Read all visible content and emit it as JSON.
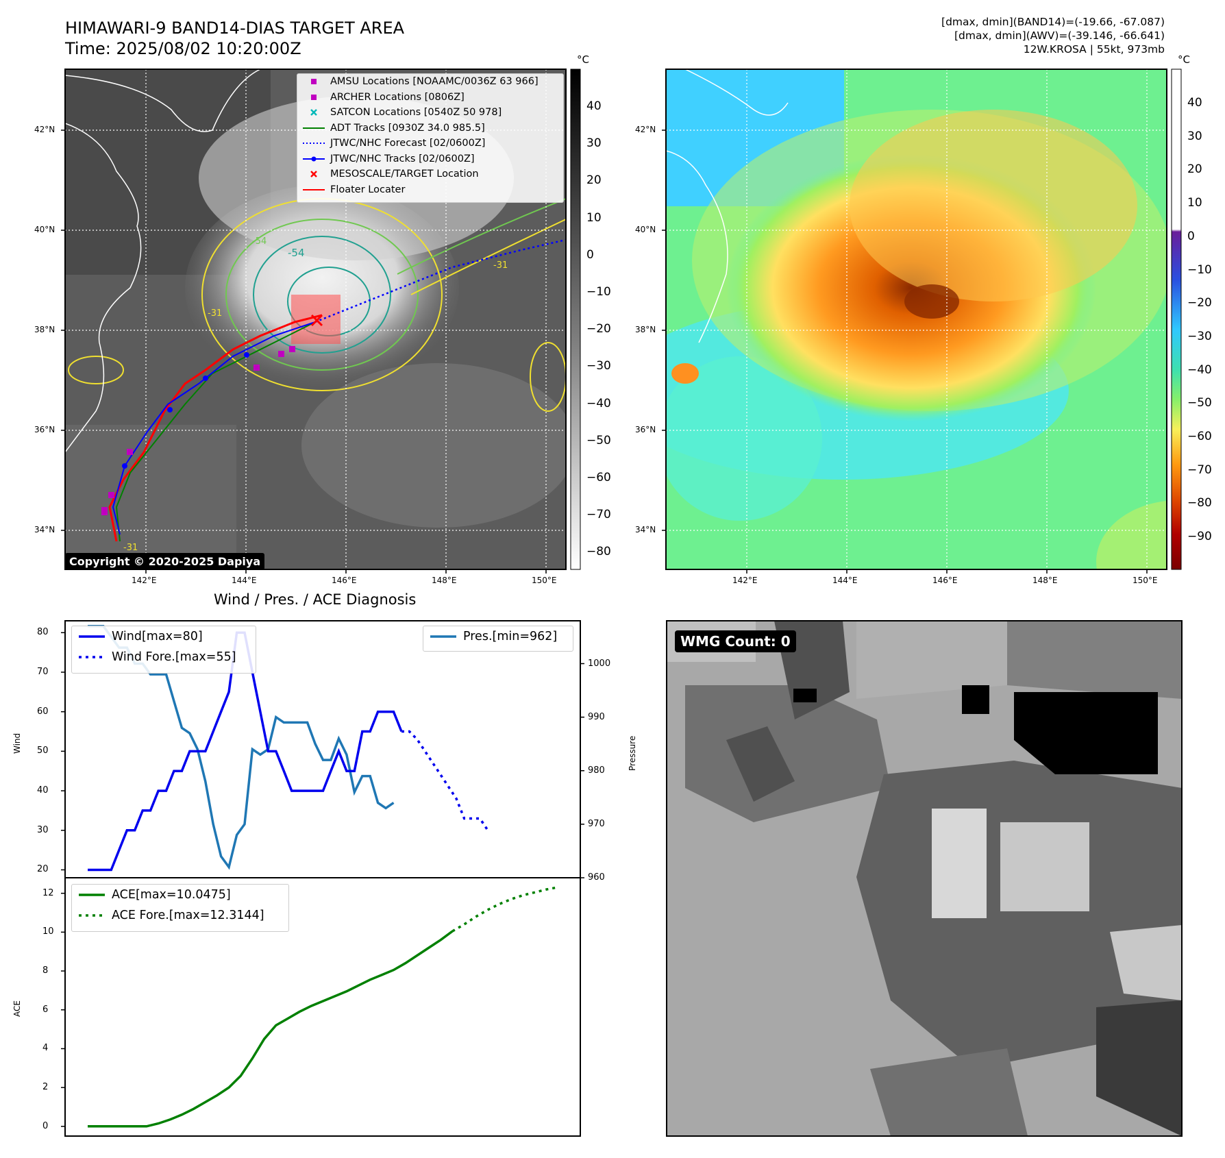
{
  "header": {
    "title_line1": "HIMAWARI-9 BAND14-DIAS TARGET AREA",
    "title_line2": "Time: 2025/08/02 10:20:00Z",
    "right_line1": "[dmax, dmin](BAND14)=(-19.66, -67.087)",
    "right_line2": "[dmax, dmin](AWV)=(-39.146, -66.641)",
    "right_line3": "12W.KROSA | 55kt, 973mb"
  },
  "map_panel": {
    "copyright": "Copyright © 2020-2025 Dapiya",
    "lat_labels": [
      "42°N",
      "40°N",
      "38°N",
      "36°N",
      "34°N"
    ],
    "lon_labels": [
      "142°E",
      "144°E",
      "146°E",
      "148°E",
      "150°E"
    ],
    "colorbar_unit": "°C",
    "colorbar_ticks": [
      "40",
      "30",
      "20",
      "10",
      "0",
      "−10",
      "−20",
      "−30",
      "−40",
      "−50",
      "−60",
      "−70",
      "−80"
    ],
    "legend": [
      {
        "label": "AMSU Locations [NOAAMC/0036Z 63 966]",
        "marker": "square",
        "color": "#c000c0"
      },
      {
        "label": "ARCHER Locations [0806Z]",
        "marker": "square",
        "color": "#c000c0"
      },
      {
        "label": "SATCON Locations [0540Z 50 978]",
        "marker": "x",
        "color": "#00b8b8"
      },
      {
        "label": "ADT Tracks [0930Z 34.0 985.5]",
        "marker": "line",
        "color": "#008000"
      },
      {
        "label": "JTWC/NHC Forecast [02/0600Z]",
        "marker": "dotted",
        "color": "#0000ff"
      },
      {
        "label": "JTWC/NHC Tracks [02/0600Z]",
        "marker": "line-dot",
        "color": "#0000ff"
      },
      {
        "label": "MESOSCALE/TARGET Location",
        "marker": "x",
        "color": "#ff0000"
      },
      {
        "label": "Floater Locater",
        "marker": "line",
        "color": "#ff0000"
      }
    ],
    "contour_labels": [
      "-54",
      "-54",
      "-31",
      "-31",
      "-31"
    ]
  },
  "awv_panel": {
    "colorbar_unit": "°C",
    "colorbar_ticks": [
      "40",
      "30",
      "20",
      "10",
      "0",
      "−10",
      "−20",
      "−30",
      "−40",
      "−50",
      "−60",
      "−70",
      "−80",
      "−90"
    ]
  },
  "wmg_panel": {
    "label": "WMG Count: 0"
  },
  "chart_data": [
    {
      "type": "line",
      "title": "Wind / Pres. / ACE Diagnosis",
      "ylabel": "Wind",
      "y2label": "Pressure",
      "ylim": [
        18,
        83
      ],
      "y2lim": [
        960,
        1008
      ],
      "yticks": [
        "80",
        "70",
        "60",
        "50",
        "40",
        "30",
        "20"
      ],
      "y2ticks": [
        "1000",
        "990",
        "980",
        "970",
        "960"
      ],
      "series": [
        {
          "name": "Wind[max=80]",
          "axis": "left",
          "style": "solid",
          "color": "#0000ee",
          "values": [
            20,
            20,
            20,
            20,
            25,
            30,
            30,
            35,
            35,
            40,
            40,
            45,
            45,
            50,
            50,
            50,
            55,
            60,
            65,
            80,
            80,
            70,
            60,
            50,
            50,
            45,
            40,
            40,
            40,
            40,
            40,
            45,
            50,
            45,
            45,
            55,
            55,
            60,
            60,
            60,
            55
          ]
        },
        {
          "name": "Wind Fore.[max=55]",
          "axis": "left",
          "style": "dotted",
          "color": "#0000ee",
          "values": [
            55,
            55,
            53,
            50,
            47,
            44,
            41,
            38,
            33,
            33,
            33,
            30
          ],
          "start": 40
        },
        {
          "name": "Pres.[min=962]",
          "axis": "right",
          "style": "solid",
          "color": "#1f77b4",
          "values": [
            1007,
            1007,
            1007,
            1005,
            1003,
            1003,
            1000,
            1000,
            998,
            998,
            998,
            993,
            988,
            987,
            984,
            978,
            970,
            964,
            962,
            968,
            970,
            984,
            983,
            984,
            990,
            989,
            989,
            989,
            989,
            985,
            982,
            982,
            986,
            983,
            976,
            979,
            979,
            974,
            973,
            974
          ]
        }
      ]
    },
    {
      "type": "line",
      "ylabel": "ACE",
      "ylim": [
        -0.5,
        12.8
      ],
      "yticks": [
        "12",
        "10",
        "8",
        "6",
        "4",
        "2",
        "0"
      ],
      "series": [
        {
          "name": "ACE[max=10.0475]",
          "style": "solid",
          "color": "#008000",
          "values": [
            0,
            0,
            0,
            0,
            0,
            0,
            0.15,
            0.35,
            0.6,
            0.9,
            1.25,
            1.6,
            2.0,
            2.6,
            3.5,
            4.5,
            5.2,
            5.55,
            5.9,
            6.2,
            6.45,
            6.7,
            6.95,
            7.25,
            7.55,
            7.8,
            8.05,
            8.4,
            8.8,
            9.2,
            9.6,
            10.0475
          ]
        },
        {
          "name": "ACE Fore.[max=12.3144]",
          "style": "dotted",
          "color": "#008000",
          "values": [
            10.0475,
            10.4,
            10.8,
            11.15,
            11.45,
            11.7,
            11.9,
            12.05,
            12.2,
            12.3144
          ],
          "start": 31
        }
      ]
    }
  ]
}
